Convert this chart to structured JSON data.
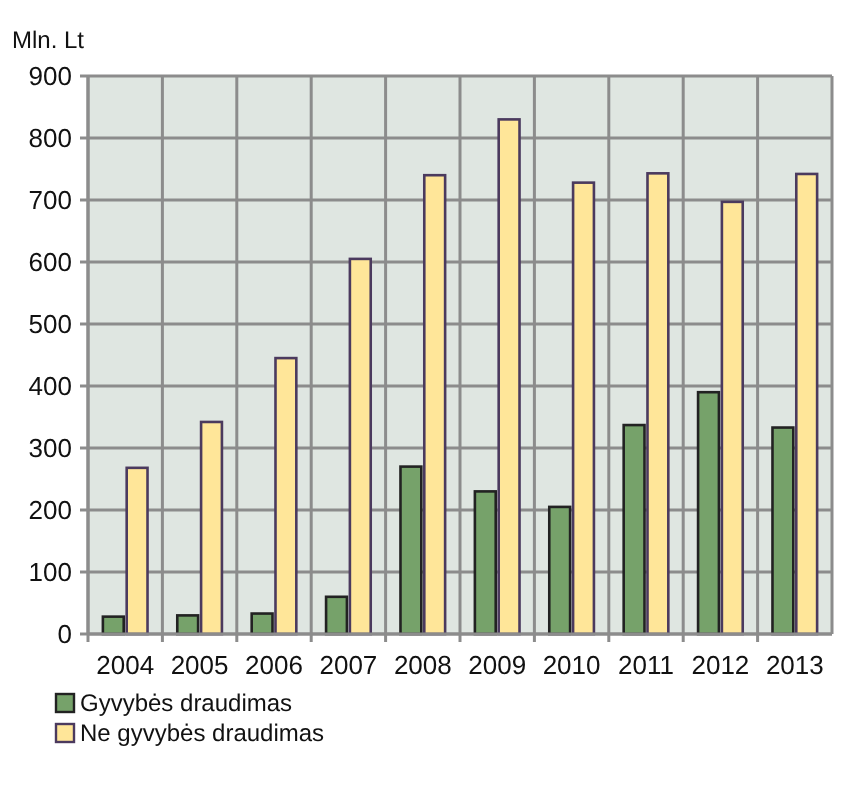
{
  "chart_data": {
    "type": "bar",
    "ylabel": "Mln. Lt",
    "categories": [
      "2004",
      "2005",
      "2006",
      "2007",
      "2008",
      "2009",
      "2010",
      "2011",
      "2012",
      "2013"
    ],
    "series": [
      {
        "name": "Gyvybės draudimas",
        "color": "#76a26a",
        "values": [
          28,
          30,
          33,
          60,
          270,
          230,
          205,
          337,
          390,
          333
        ]
      },
      {
        "name": "Ne gyvybės draudimas",
        "color": "#ffe699",
        "values": [
          268,
          342,
          445,
          605,
          740,
          830,
          728,
          743,
          697,
          742
        ]
      }
    ],
    "ylim": [
      0,
      900
    ],
    "yticks": [
      0,
      100,
      200,
      300,
      400,
      500,
      600,
      700,
      800,
      900
    ],
    "grid": true,
    "legend": "bottom left"
  }
}
